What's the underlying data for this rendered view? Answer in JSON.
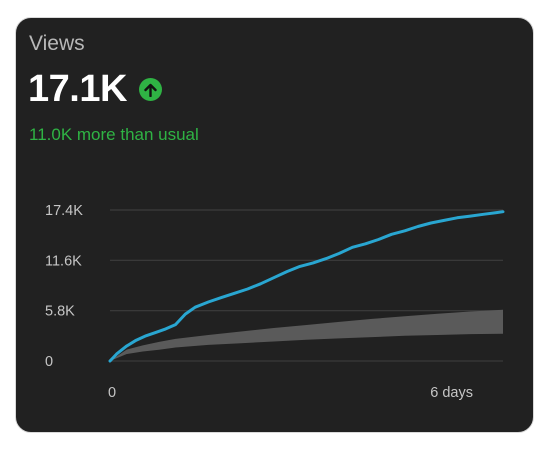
{
  "card": {
    "metric_label": "Views",
    "metric_value": "17.1K",
    "trend_icon": "arrow-up-circle-icon",
    "trend_text": "11.0K more than usual",
    "colors": {
      "background": "#212121",
      "accent_green": "#2fb344",
      "series_line": "#29a6d1",
      "typical_band": "#5a5a5a"
    }
  },
  "chart_data": {
    "type": "line",
    "title": "",
    "xlabel": "",
    "ylabel": "",
    "x_ticks": [
      "0",
      "6 days"
    ],
    "y_ticks": [
      "17.4K",
      "11.6K",
      "5.8K",
      "0"
    ],
    "xlim": [
      0,
      6
    ],
    "ylim": [
      0,
      17400
    ],
    "grid": true,
    "series": [
      {
        "role": "current-period",
        "x": [
          0,
          0.1,
          0.25,
          0.4,
          0.55,
          0.7,
          0.85,
          1.0,
          1.15,
          1.3,
          1.4,
          1.5,
          1.7,
          1.9,
          2.1,
          2.3,
          2.5,
          2.7,
          2.9,
          3.1,
          3.3,
          3.5,
          3.7,
          3.9,
          4.1,
          4.3,
          4.5,
          4.7,
          4.9,
          5.1,
          5.3,
          5.5,
          5.7,
          5.9,
          6.0
        ],
        "values": [
          0,
          800,
          1700,
          2400,
          2900,
          3300,
          3700,
          4200,
          5400,
          6200,
          6500,
          6800,
          7300,
          7800,
          8300,
          8900,
          9600,
          10300,
          10900,
          11300,
          11800,
          12400,
          13100,
          13500,
          14000,
          14600,
          15000,
          15500,
          15900,
          16200,
          16500,
          16700,
          16900,
          17100,
          17200
        ]
      }
    ],
    "typical_range": {
      "x": [
        0,
        0.25,
        0.5,
        0.75,
        1.0,
        1.5,
        2.0,
        2.5,
        3.0,
        3.5,
        4.0,
        4.5,
        5.0,
        5.5,
        6.0
      ],
      "low": [
        0,
        800,
        1100,
        1300,
        1550,
        1850,
        2050,
        2250,
        2450,
        2600,
        2750,
        2900,
        3000,
        3100,
        3150
      ],
      "high": [
        0,
        1300,
        1800,
        2200,
        2550,
        3000,
        3400,
        3800,
        4150,
        4500,
        4850,
        5150,
        5450,
        5700,
        5900
      ]
    }
  }
}
